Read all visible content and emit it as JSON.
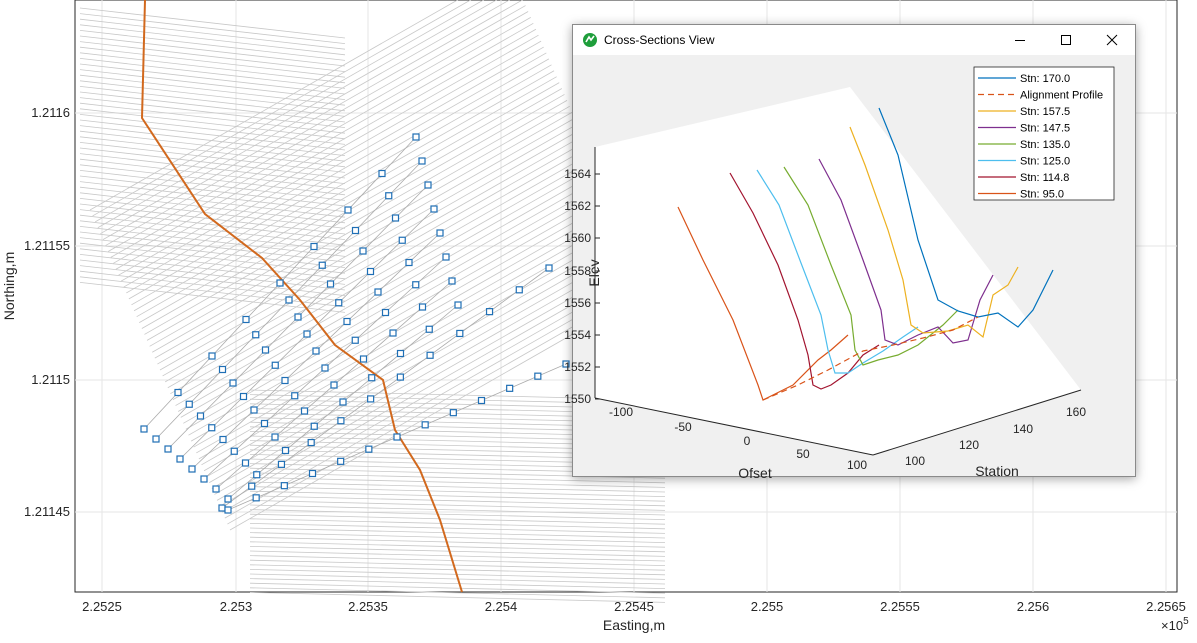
{
  "main_plot": {
    "x_ticks": [
      "2.2525",
      "2.253",
      "2.2535",
      "2.254",
      "2.2545",
      "2.255",
      "2.2555",
      "2.256",
      "2.2565"
    ],
    "y_ticks": [
      "1.2116",
      "1.21155",
      "1.2115",
      "1.21145"
    ],
    "xlabel": "Easting,m",
    "ylabel": "Northing,m",
    "x_exponent_base": "×10",
    "x_exponent_power": "5",
    "colors": {
      "alignment": "#d2691e",
      "stations": "#1f6fb5",
      "cross_sections": "#c8c8c8",
      "grid": "#e6e6e6"
    }
  },
  "cross_sections_window": {
    "title": "Cross-Sections View",
    "controls": {
      "minimize": "minimize-icon",
      "maximize": "maximize-icon",
      "close": "close-icon"
    },
    "chart_data": {
      "type": "line",
      "zlabel": "Elev",
      "xlabel": "Ofset",
      "ylabel": "Station",
      "z_ticks": [
        "1550",
        "1552",
        "1554",
        "1556",
        "1558",
        "1560",
        "1562",
        "1564"
      ],
      "offset_ticks": [
        "-100",
        "-50",
        "0",
        "50",
        "100"
      ],
      "station_ticks": [
        "100",
        "120",
        "140",
        "160"
      ],
      "legend": [
        {
          "label": "Stn: 170.0",
          "color": "#0072bd",
          "dashed": false
        },
        {
          "label": "Alignment Profile",
          "color": "#d95319",
          "dashed": true
        },
        {
          "label": "Stn: 157.5",
          "color": "#edb120",
          "dashed": false
        },
        {
          "label": "Stn: 147.5",
          "color": "#7e2f8e",
          "dashed": false
        },
        {
          "label": "Stn: 135.0",
          "color": "#77ac30",
          "dashed": false
        },
        {
          "label": "Stn: 125.0",
          "color": "#4dbeee",
          "dashed": false
        },
        {
          "label": "Stn: 114.8",
          "color": "#a2142f",
          "dashed": false
        },
        {
          "label": "Stn: 95.0",
          "color": "#d95319",
          "dashed": false
        }
      ]
    }
  }
}
